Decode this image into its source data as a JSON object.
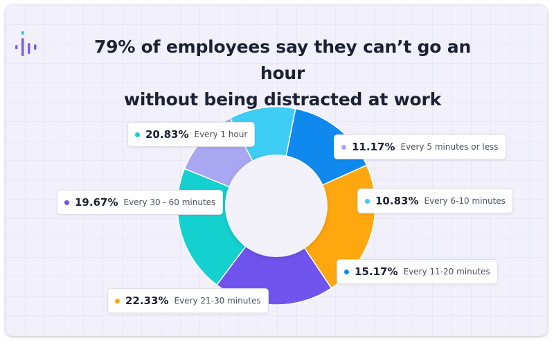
{
  "chart_data": {
    "type": "pie",
    "donut": true,
    "title_lines": [
      "79% of employees say they can’t go an hour",
      "without being distracted at work"
    ],
    "legend": "none",
    "slices": [
      {
        "label": "Every 5 minutes or less",
        "value": 11.17,
        "value_label": "11.17%",
        "color": "#a9a6f2"
      },
      {
        "label": "Every 6-10 minutes",
        "value": 10.83,
        "value_label": "10.83%",
        "color": "#3ecdf5"
      },
      {
        "label": "Every 11-20 minutes",
        "value": 15.17,
        "value_label": "15.17%",
        "color": "#1089ee"
      },
      {
        "label": "Every 21-30 minutes",
        "value": 22.33,
        "value_label": "22.33%",
        "color": "#ffa70e"
      },
      {
        "label": "Every 30 - 60 minutes",
        "value": 19.67,
        "value_label": "19.67%",
        "color": "#6f54ee"
      },
      {
        "label": "Every 1 hour",
        "value": 20.83,
        "value_label": "20.83%",
        "color": "#14d1d0"
      }
    ]
  },
  "logo": {
    "icon": "sound-bars-icon",
    "colors": [
      "#7a5cf0",
      "#19c9c9"
    ]
  }
}
